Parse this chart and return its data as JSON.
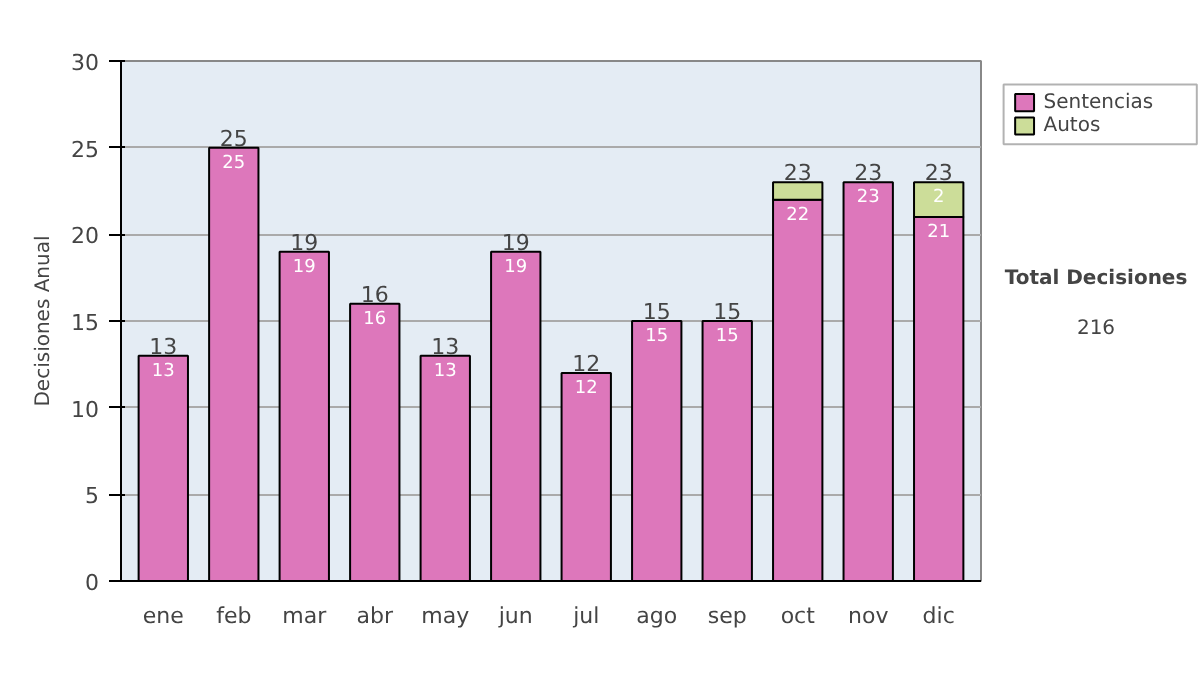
{
  "chart_data": {
    "type": "bar",
    "stacked": true,
    "ylabel": "Decisiones Anual",
    "categories": [
      "ene",
      "feb",
      "mar",
      "abr",
      "may",
      "jun",
      "jul",
      "ago",
      "sep",
      "oct",
      "nov",
      "dic"
    ],
    "series": [
      {
        "name": "Sentencias",
        "color": "#dd77bb",
        "values": [
          13,
          25,
          19,
          16,
          13,
          19,
          12,
          15,
          15,
          22,
          23,
          21
        ],
        "value_labels": [
          "13",
          "25",
          "19",
          "16",
          "13",
          "19",
          "12",
          "15",
          "15",
          "22",
          "23",
          "21"
        ]
      },
      {
        "name": "Autos",
        "color": "#ccdd99",
        "values": [
          null,
          null,
          null,
          null,
          null,
          null,
          null,
          null,
          null,
          1,
          null,
          2
        ],
        "value_labels": [
          null,
          null,
          null,
          null,
          null,
          null,
          null,
          null,
          null,
          null,
          null,
          "2"
        ]
      }
    ],
    "totals": [
      "13",
      "25",
      "19",
      "16",
      "13",
      "19",
      "12",
      "15",
      "15",
      "23",
      "23",
      "23"
    ],
    "ylim": [
      0,
      30
    ],
    "yticks": [
      0,
      5,
      10,
      15,
      20,
      25,
      30
    ],
    "grid": "y",
    "legend": "right",
    "annotations": [
      "Total Decisiones",
      "216"
    ]
  }
}
